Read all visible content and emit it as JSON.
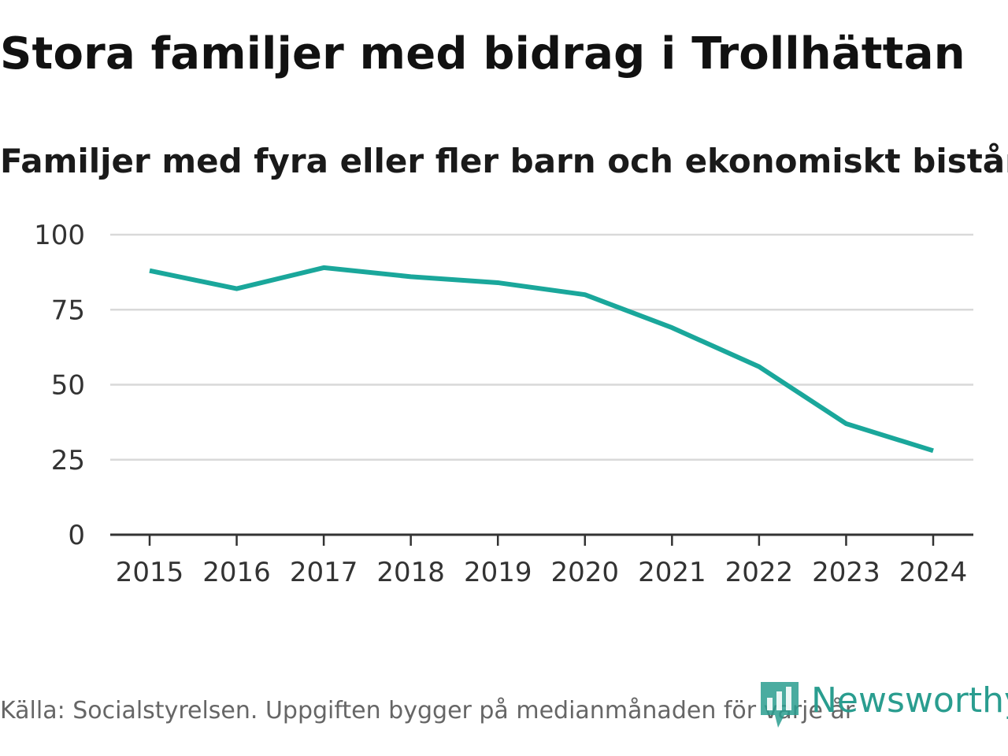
{
  "chart_data": {
    "type": "line",
    "title": "Stora familjer med bidrag i Trollhättan",
    "subtitle": "Familjer med fyra eller fler barn och ekonomiskt bistånd",
    "categories": [
      "2015",
      "2016",
      "2017",
      "2018",
      "2019",
      "2020",
      "2021",
      "2022",
      "2023",
      "2024"
    ],
    "series": [
      {
        "name": "Familjer med fyra eller fler barn och ekonomiskt bistånd",
        "values": [
          88,
          82,
          89,
          86,
          84,
          80,
          69,
          56,
          37,
          28
        ],
        "color": "#1aa79b"
      }
    ],
    "yticks": [
      "100",
      "75",
      "50",
      "25",
      "0"
    ],
    "ylim": [
      0,
      100
    ],
    "xlabel": "",
    "ylabel": "",
    "grid": true
  },
  "footer": {
    "source": "Källa: Socialstyrelsen. Uppgiften bygger på medianmånaden för varje år",
    "logo_text": "Newsworthy",
    "logo_icon": "newsworthy-logo-icon"
  },
  "colors": {
    "line": "#1aa79b",
    "grid": "#d9d9d9",
    "axis": "#333333",
    "logo": "#2a9d8f"
  }
}
